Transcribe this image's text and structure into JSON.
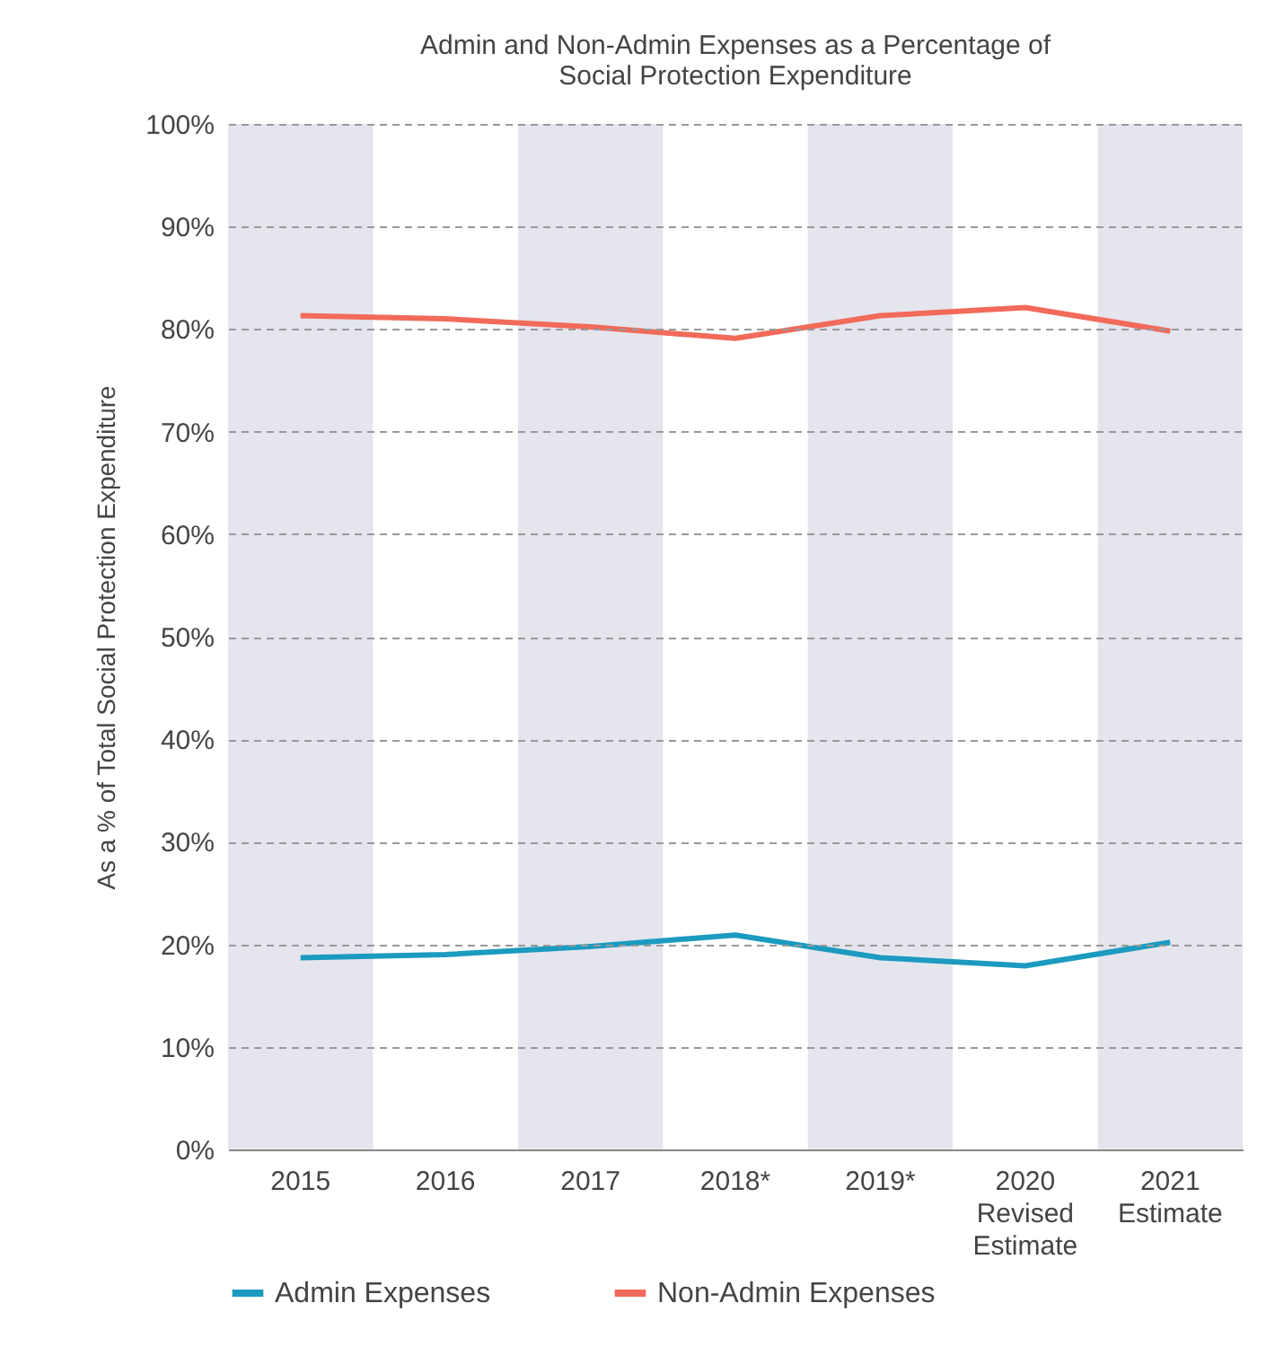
{
  "chart_data": {
    "type": "line",
    "title": "Admin and Non-Admin Expenses as a Percentage of Social Protection Expenditure",
    "ylabel": "As a % of Total Social Protection Expenditure",
    "categories": [
      "2015",
      "2016",
      "2017",
      "2018*",
      "2019*",
      "2020 Revised Estimate",
      "2021 Estimate"
    ],
    "series": [
      {
        "name": "Admin Expenses",
        "color": "#1b9bbf",
        "values": [
          18.7,
          19.0,
          19.8,
          20.9,
          18.7,
          17.9,
          20.2
        ]
      },
      {
        "name": "Non-Admin Expenses",
        "color": "#f26a5a",
        "values": [
          81.3,
          81.0,
          80.2,
          79.1,
          81.3,
          82.1,
          79.8
        ]
      }
    ],
    "ylim": [
      0,
      100
    ],
    "yticks": [
      {
        "value": 0,
        "label": "0%"
      },
      {
        "value": 10,
        "label": "10%"
      },
      {
        "value": 20,
        "label": "20%"
      },
      {
        "value": 30,
        "label": "30%"
      },
      {
        "value": 40,
        "label": "40%"
      },
      {
        "value": 50,
        "label": "50%"
      },
      {
        "value": 60,
        "label": "60%"
      },
      {
        "value": 70,
        "label": "70%"
      },
      {
        "value": 80,
        "label": "80%"
      },
      {
        "value": 90,
        "label": "90%"
      },
      {
        "value": 100,
        "label": "100%"
      }
    ],
    "bands": [
      {
        "axis": "x",
        "from": "2015",
        "to": "2015",
        "color": "#e5e5ee"
      },
      {
        "axis": "x",
        "from": "2017",
        "to": "2017",
        "color": "#e5e5ee"
      },
      {
        "axis": "x",
        "from": "2019*",
        "to": "2019*",
        "color": "#e5e5ee"
      },
      {
        "axis": "x",
        "from": "2021 Estimate",
        "to": "2021 Estimate",
        "color": "#e5e5ee"
      }
    ],
    "grid": "y",
    "legend": "bottom",
    "marker": "none",
    "line_style": "solid"
  }
}
